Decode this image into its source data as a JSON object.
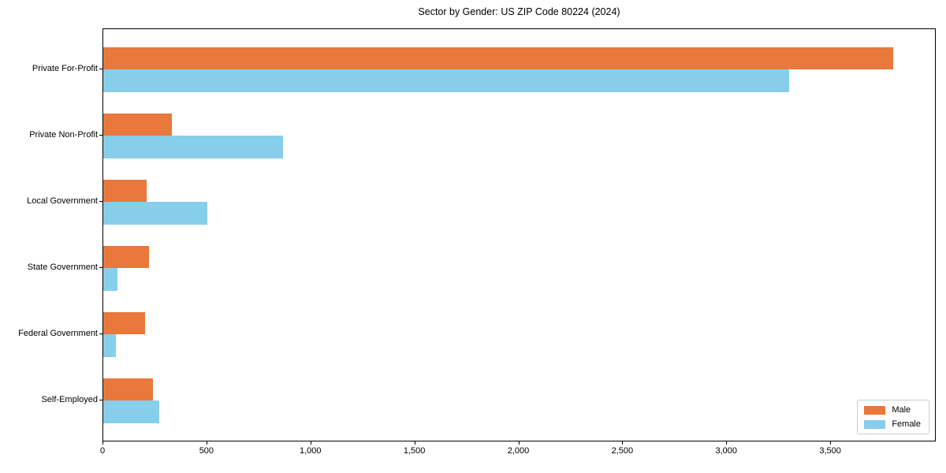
{
  "title": "Sector by Gender: US ZIP Code 80224 (2024)",
  "chart_data": {
    "type": "bar",
    "orientation": "horizontal",
    "title": "Sector by Gender: US ZIP Code 80224 (2024)",
    "categories": [
      "Private For-Profit",
      "Private Non-Profit",
      "Local Government",
      "State Government",
      "Federal Government",
      "Self-Employed"
    ],
    "series": [
      {
        "name": "Male",
        "color": "#E8783B",
        "values": [
          3800,
          330,
          210,
          220,
          200,
          240
        ]
      },
      {
        "name": "Female",
        "color": "#87CEEB",
        "values": [
          3300,
          865,
          500,
          70,
          60,
          270
        ]
      }
    ],
    "xlabel": "",
    "ylabel": "",
    "xlim": [
      0,
      4000
    ],
    "xticks": [
      0,
      500,
      1000,
      1500,
      2000,
      2500,
      3000,
      3500
    ],
    "xtick_labels": [
      "0",
      "500",
      "1,000",
      "1,500",
      "2,000",
      "2,500",
      "3,000",
      "3,500"
    ],
    "grid": false,
    "legend_position": "lower right",
    "plot_border_color": "#000000",
    "background_color": "#ffffff"
  }
}
